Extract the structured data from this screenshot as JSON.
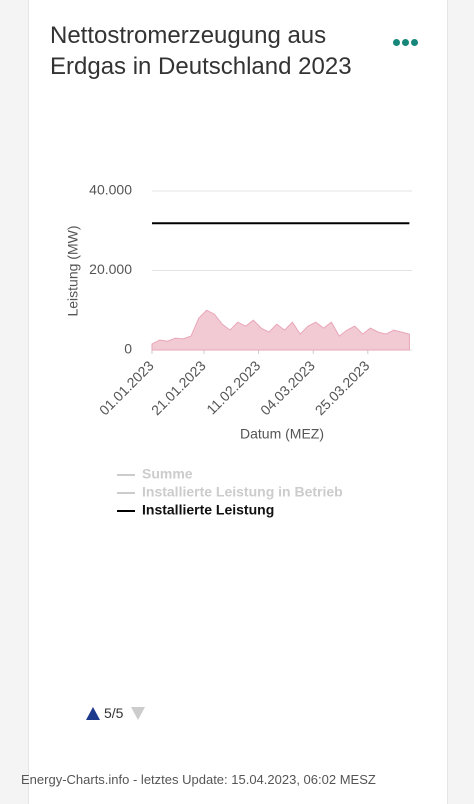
{
  "chart_data": {
    "type": "line",
    "title": "Nettostromerzeugung aus Erdgas in Deutschland 2023",
    "y_label": "Leistung (MW)",
    "x_label": "Datum (MEZ)",
    "x": [
      "01.01.2023",
      "04.01.2023",
      "07.01.2023",
      "10.01.2023",
      "13.01.2023",
      "16.01.2023",
      "19.01.2023",
      "22.01.2023",
      "25.01.2023",
      "28.01.2023",
      "31.01.2023",
      "03.02.2023",
      "06.02.2023",
      "09.02.2023",
      "12.02.2023",
      "15.02.2023",
      "18.02.2023",
      "21.02.2023",
      "24.02.2023",
      "27.02.2023",
      "02.03.2023",
      "05.03.2023",
      "08.03.2023",
      "11.03.2023",
      "14.03.2023",
      "17.03.2023",
      "20.03.2023",
      "23.03.2023",
      "26.03.2023",
      "29.03.2023",
      "01.04.2023",
      "04.04.2023",
      "07.04.2023",
      "10.04.2023"
    ],
    "xlim": [
      "01.01.2023",
      "11.04.2023"
    ],
    "xticks": [
      "01.01.2023",
      "21.01.2023",
      "11.02.2023",
      "04.03.2023",
      "25.03.2023"
    ],
    "ylim": [
      0,
      40000
    ],
    "yticks": [
      0,
      {
        "value": 20000,
        "label": "20.000"
      },
      {
        "value": 40000,
        "label": "40.000"
      }
    ],
    "grid": true,
    "series": [
      {
        "color": "#e9a6b8",
        "values": [
          1500,
          2500,
          2200,
          3000,
          2800,
          3500,
          8000,
          10000,
          9000,
          6500,
          5000,
          7000,
          6000,
          7500,
          5500,
          4500,
          6500,
          5000,
          7000,
          4000,
          6000,
          7000,
          5500,
          7000,
          3500,
          5000,
          6000,
          4000,
          5500,
          4500,
          4000,
          5000,
          4500,
          4000
        ]
      },
      {
        "name": "Summe",
        "color": "#cccccc",
        "hidden": true
      },
      {
        "name": "Installierte Leistung in Betrieb",
        "color": "#cccccc",
        "hidden": true
      },
      {
        "name": "Installierte Leistung",
        "color": "#000000",
        "values": [
          31900,
          31900,
          31900,
          31900,
          31900,
          31900,
          31900,
          31900,
          31900,
          31900,
          31900,
          31900,
          31900,
          31900,
          31900,
          31900,
          31900,
          31900,
          31900,
          31900,
          31900,
          31900,
          31900,
          31900,
          31900,
          31900,
          31900,
          31900,
          31900,
          31900,
          31900,
          31900,
          31900,
          31900
        ]
      }
    ]
  },
  "pager": "5/5",
  "footer": "Energy-Charts.info - letztes Update: 15.04.2023, 06:02 MESZ"
}
